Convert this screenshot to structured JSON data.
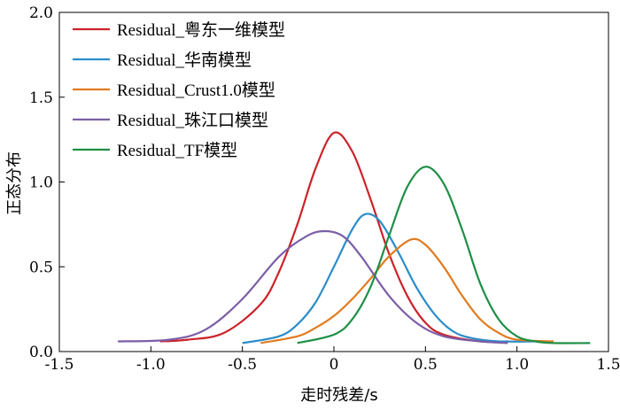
{
  "chart_data": {
    "type": "line",
    "xlabel": "走时残差/s",
    "ylabel": "正态分布",
    "xlim": [
      -1.5,
      1.5
    ],
    "ylim": [
      0,
      2.0
    ],
    "xticks": [
      "-1.5",
      "-1.0",
      "-0.5",
      "0",
      "0.5",
      "1.0",
      "1.5"
    ],
    "yticks": [
      "0.0",
      "0.5",
      "1.0",
      "1.5",
      "2.0"
    ],
    "legend_position": "top-left",
    "series": [
      {
        "name": "Residual_粤东一维模型",
        "color": "#cc2229",
        "x": [
          -0.95,
          -0.8,
          -0.6,
          -0.4,
          -0.3,
          -0.2,
          -0.1,
          0.0,
          0.1,
          0.2,
          0.3,
          0.4,
          0.5,
          0.6,
          0.8,
          0.95
        ],
        "y": [
          0.06,
          0.07,
          0.11,
          0.28,
          0.47,
          0.75,
          1.08,
          1.29,
          1.18,
          0.9,
          0.58,
          0.33,
          0.17,
          0.1,
          0.06,
          0.06
        ]
      },
      {
        "name": "Residual_华南模型",
        "color": "#2a8cc9",
        "x": [
          -0.5,
          -0.3,
          -0.2,
          -0.1,
          0.0,
          0.1,
          0.17,
          0.25,
          0.35,
          0.45,
          0.55,
          0.65,
          0.75,
          0.9,
          1.1
        ],
        "y": [
          0.05,
          0.09,
          0.16,
          0.29,
          0.5,
          0.72,
          0.81,
          0.77,
          0.59,
          0.38,
          0.22,
          0.12,
          0.08,
          0.06,
          0.06
        ]
      },
      {
        "name": "Residual_Crust1.0模型",
        "color": "#e07b1f",
        "x": [
          -0.4,
          -0.2,
          -0.1,
          0.0,
          0.1,
          0.2,
          0.3,
          0.42,
          0.5,
          0.6,
          0.7,
          0.8,
          0.9,
          1.0,
          1.2
        ],
        "y": [
          0.05,
          0.09,
          0.14,
          0.21,
          0.31,
          0.43,
          0.56,
          0.66,
          0.63,
          0.5,
          0.33,
          0.19,
          0.11,
          0.07,
          0.06
        ]
      },
      {
        "name": "Residual_珠江口模型",
        "color": "#7b5ea6",
        "x": [
          -1.18,
          -0.9,
          -0.7,
          -0.5,
          -0.3,
          -0.15,
          -0.05,
          0.05,
          0.15,
          0.3,
          0.45,
          0.6,
          0.8,
          0.95
        ],
        "y": [
          0.06,
          0.07,
          0.13,
          0.31,
          0.56,
          0.68,
          0.71,
          0.68,
          0.56,
          0.33,
          0.17,
          0.09,
          0.06,
          0.05
        ]
      },
      {
        "name": "Residual_TF模型",
        "color": "#1e8f45",
        "x": [
          -0.2,
          0.0,
          0.1,
          0.2,
          0.3,
          0.4,
          0.5,
          0.6,
          0.7,
          0.8,
          0.9,
          1.0,
          1.1,
          1.2,
          1.4
        ],
        "y": [
          0.05,
          0.1,
          0.19,
          0.38,
          0.68,
          0.97,
          1.09,
          0.99,
          0.72,
          0.4,
          0.19,
          0.09,
          0.06,
          0.05,
          0.05
        ]
      }
    ]
  }
}
